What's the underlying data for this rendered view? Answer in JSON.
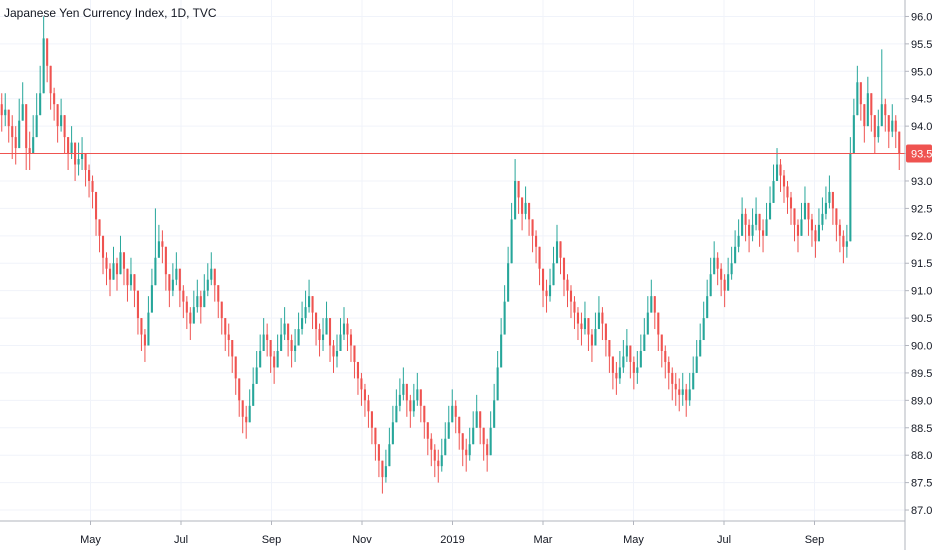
{
  "chart_data": {
    "type": "candlestick",
    "title": "Japanese Yen Currency Index, 1D, TVC",
    "x_tick_labels": [
      "May",
      "Jul",
      "Sep",
      "Nov",
      "2019",
      "Mar",
      "May",
      "Jul",
      "Sep"
    ],
    "y_tick_labels": [
      "87.0",
      "87.5",
      "88.0",
      "88.5",
      "89.0",
      "89.5",
      "90.0",
      "90.5",
      "91.0",
      "91.5",
      "92.0",
      "92.5",
      "93.0",
      "93.5",
      "94.0",
      "94.5",
      "95.0",
      "95.5",
      "96.0"
    ],
    "ylim": [
      86.8,
      96.3
    ],
    "last_price": 93.5,
    "last_price_label": "93.5",
    "grid": true,
    "colors": {
      "up": "#26a69a",
      "down": "#ef5350",
      "grid": "#f0f3fa",
      "axis": "#b2b5be",
      "price_line": "#ef5350"
    },
    "closes": [
      94.2,
      94.3,
      94.0,
      93.8,
      93.6,
      94.1,
      94.4,
      93.6,
      93.5,
      93.8,
      94.2,
      94.6,
      95.6,
      95.1,
      94.6,
      94.4,
      94.0,
      94.2,
      93.8,
      93.5,
      93.7,
      93.3,
      93.4,
      93.5,
      93.2,
      93.0,
      92.8,
      92.3,
      92.0,
      91.6,
      91.4,
      91.2,
      91.5,
      91.3,
      91.7,
      91.4,
      91.1,
      91.3,
      91.0,
      90.5,
      90.2,
      90.0,
      90.6,
      91.1,
      91.6,
      91.9,
      91.8,
      91.3,
      91.0,
      91.2,
      91.4,
      91.0,
      90.8,
      90.6,
      90.4,
      90.7,
      90.9,
      90.7,
      91.0,
      91.2,
      91.4,
      91.1,
      90.8,
      90.5,
      90.2,
      90.1,
      89.8,
      89.4,
      89.0,
      88.7,
      88.6,
      88.9,
      89.3,
      89.6,
      89.9,
      90.2,
      90.1,
      89.8,
      89.6,
      89.9,
      90.2,
      90.4,
      90.1,
      89.9,
      90.0,
      90.3,
      90.5,
      90.7,
      90.9,
      90.6,
      90.3,
      90.1,
      90.2,
      90.5,
      90.0,
      89.8,
      89.9,
      90.2,
      90.4,
      90.2,
      90.0,
      89.7,
      89.4,
      89.2,
      89.0,
      88.8,
      88.5,
      88.2,
      87.9,
      87.6,
      87.8,
      88.2,
      88.6,
      88.9,
      89.1,
      89.3,
      89.0,
      88.8,
      89.0,
      89.2,
      88.9,
      88.6,
      88.3,
      88.1,
      87.9,
      87.8,
      88.0,
      88.3,
      88.6,
      88.9,
      88.7,
      88.4,
      88.1,
      88.0,
      88.2,
      88.5,
      88.8,
      88.5,
      88.2,
      88.0,
      88.5,
      89.0,
      89.6,
      90.2,
      90.8,
      91.5,
      92.3,
      93.0,
      92.7,
      92.4,
      92.6,
      92.3,
      92.0,
      91.8,
      91.4,
      91.0,
      90.9,
      91.1,
      91.5,
      91.9,
      91.6,
      91.2,
      91.0,
      90.8,
      90.6,
      90.4,
      90.3,
      90.5,
      90.2,
      90.0,
      90.3,
      90.6,
      90.4,
      90.1,
      89.8,
      89.5,
      89.4,
      89.6,
      89.8,
      90.0,
      89.7,
      89.5,
      89.6,
      89.9,
      90.2,
      90.6,
      90.9,
      90.6,
      90.2,
      89.9,
      89.7,
      89.5,
      89.3,
      89.2,
      89.1,
      89.2,
      89.0,
      89.2,
      89.5,
      89.8,
      90.1,
      90.5,
      90.9,
      91.3,
      91.6,
      91.4,
      91.2,
      91.0,
      91.3,
      91.5,
      91.8,
      92.0,
      92.4,
      92.2,
      92.0,
      92.2,
      92.4,
      92.1,
      92.0,
      92.3,
      92.6,
      93.0,
      93.3,
      93.1,
      92.9,
      92.7,
      92.5,
      92.2,
      92.0,
      92.3,
      92.6,
      92.3,
      92.1,
      91.9,
      92.2,
      92.4,
      92.6,
      92.8,
      92.5,
      92.2,
      92.0,
      91.8,
      91.9,
      93.5,
      94.2,
      94.8,
      94.4,
      94.0,
      94.6,
      94.2,
      93.8,
      94.0,
      94.4,
      94.2,
      93.9,
      94.1,
      93.9,
      93.5
    ],
    "highs": [
      94.6,
      94.6,
      94.3,
      94.2,
      94.0,
      94.5,
      94.8,
      93.9,
      93.9,
      94.2,
      94.6,
      95.1,
      96.0,
      95.6,
      95.0,
      94.7,
      94.3,
      94.5,
      94.1,
      93.8,
      94.0,
      93.6,
      93.7,
      93.8,
      93.5,
      93.3,
      93.1,
      92.6,
      92.3,
      91.9,
      91.7,
      91.5,
      91.8,
      91.6,
      92.0,
      91.7,
      91.4,
      91.6,
      91.3,
      90.8,
      90.5,
      90.3,
      90.9,
      91.4,
      92.5,
      92.2,
      92.1,
      91.6,
      91.3,
      91.5,
      91.7,
      91.3,
      91.1,
      90.9,
      90.7,
      91.0,
      91.2,
      91.0,
      91.3,
      91.5,
      91.7,
      91.4,
      91.1,
      90.8,
      90.5,
      90.4,
      90.1,
      89.7,
      89.3,
      89.0,
      88.9,
      89.2,
      89.6,
      89.9,
      90.2,
      90.5,
      90.4,
      90.1,
      89.9,
      90.2,
      90.5,
      90.7,
      90.4,
      90.2,
      90.3,
      90.6,
      90.8,
      91.0,
      91.2,
      90.9,
      90.6,
      90.4,
      90.5,
      90.8,
      90.3,
      90.1,
      90.2,
      90.5,
      90.7,
      90.5,
      90.3,
      90.0,
      89.7,
      89.5,
      89.3,
      89.1,
      88.8,
      88.5,
      88.2,
      87.9,
      88.1,
      88.5,
      88.9,
      89.2,
      89.4,
      89.6,
      89.3,
      89.1,
      89.3,
      89.5,
      89.2,
      88.9,
      88.6,
      88.4,
      88.2,
      88.1,
      88.3,
      88.6,
      88.9,
      89.2,
      89.0,
      88.7,
      88.4,
      88.3,
      88.5,
      88.8,
      89.1,
      88.8,
      88.5,
      88.3,
      88.8,
      89.3,
      89.9,
      90.5,
      91.1,
      91.8,
      92.6,
      93.4,
      93.0,
      92.7,
      92.9,
      92.6,
      92.3,
      92.1,
      91.7,
      91.3,
      91.2,
      91.4,
      91.8,
      92.2,
      91.9,
      91.5,
      91.3,
      91.1,
      90.9,
      90.7,
      90.6,
      90.8,
      90.5,
      90.3,
      90.6,
      90.9,
      90.7,
      90.4,
      90.1,
      89.8,
      89.7,
      89.9,
      90.1,
      90.3,
      90.0,
      89.8,
      89.9,
      90.2,
      90.5,
      90.9,
      91.2,
      90.9,
      90.5,
      90.2,
      90.0,
      89.8,
      89.6,
      89.5,
      89.4,
      89.5,
      89.3,
      89.5,
      89.8,
      90.1,
      90.4,
      90.8,
      91.2,
      91.6,
      91.9,
      91.7,
      91.5,
      91.3,
      91.6,
      91.8,
      92.1,
      92.3,
      92.7,
      92.5,
      92.3,
      92.5,
      92.7,
      92.4,
      92.3,
      92.6,
      92.9,
      93.3,
      93.6,
      93.4,
      93.2,
      93.0,
      92.8,
      92.5,
      92.3,
      92.6,
      92.9,
      92.6,
      92.4,
      92.2,
      92.5,
      92.7,
      92.9,
      93.1,
      92.8,
      92.5,
      92.3,
      92.1,
      92.2,
      93.8,
      94.5,
      95.1,
      94.7,
      94.3,
      94.9,
      94.5,
      94.1,
      94.3,
      95.4,
      94.5,
      94.2,
      94.4,
      94.2,
      93.7
    ],
    "lows": [
      93.9,
      94.0,
      93.7,
      93.4,
      93.3,
      93.8,
      94.1,
      93.2,
      93.2,
      93.5,
      93.9,
      94.3,
      95.2,
      94.8,
      94.3,
      94.1,
      93.7,
      93.9,
      93.5,
      93.2,
      93.4,
      93.0,
      93.1,
      93.2,
      92.9,
      92.7,
      92.5,
      92.0,
      91.7,
      91.3,
      91.1,
      90.9,
      91.2,
      91.0,
      91.4,
      91.1,
      90.8,
      91.0,
      90.7,
      90.2,
      89.9,
      89.7,
      90.3,
      90.8,
      91.3,
      91.6,
      91.5,
      91.0,
      90.7,
      90.9,
      91.1,
      90.7,
      90.5,
      90.3,
      90.1,
      90.4,
      90.6,
      90.4,
      90.7,
      90.9,
      91.1,
      90.8,
      90.5,
      90.2,
      89.9,
      89.8,
      89.5,
      89.1,
      88.7,
      88.4,
      88.3,
      88.6,
      89.0,
      89.3,
      89.6,
      89.9,
      89.8,
      89.5,
      89.3,
      89.6,
      89.9,
      90.1,
      89.8,
      89.6,
      89.7,
      90.0,
      90.2,
      90.4,
      90.6,
      90.3,
      90.0,
      89.8,
      89.9,
      90.2,
      89.7,
      89.5,
      89.6,
      89.9,
      90.1,
      89.9,
      89.7,
      89.4,
      89.1,
      88.9,
      88.7,
      88.5,
      88.2,
      87.9,
      87.6,
      87.3,
      87.5,
      87.9,
      88.3,
      88.6,
      88.8,
      89.0,
      88.7,
      88.5,
      88.7,
      88.9,
      88.6,
      88.3,
      88.0,
      87.8,
      87.6,
      87.5,
      87.7,
      88.0,
      88.3,
      88.6,
      88.4,
      88.1,
      87.8,
      87.7,
      87.9,
      88.2,
      88.5,
      88.2,
      87.9,
      87.7,
      88.2,
      88.7,
      89.3,
      89.9,
      90.5,
      91.2,
      92.0,
      92.7,
      92.4,
      92.1,
      92.3,
      92.0,
      91.7,
      91.5,
      91.1,
      90.7,
      90.6,
      90.8,
      91.2,
      91.6,
      91.3,
      90.9,
      90.7,
      90.5,
      90.3,
      90.1,
      90.0,
      90.2,
      89.9,
      89.7,
      90.0,
      90.3,
      90.1,
      89.8,
      89.5,
      89.2,
      89.1,
      89.3,
      89.5,
      89.7,
      89.4,
      89.2,
      89.3,
      89.6,
      89.9,
      90.3,
      90.6,
      90.3,
      89.9,
      89.6,
      89.4,
      89.2,
      89.0,
      88.9,
      88.8,
      88.9,
      88.7,
      88.9,
      89.2,
      89.5,
      89.8,
      90.2,
      90.6,
      91.0,
      91.3,
      91.1,
      90.9,
      90.7,
      91.0,
      91.2,
      91.5,
      91.7,
      92.1,
      91.9,
      91.7,
      91.9,
      92.1,
      91.8,
      91.7,
      92.0,
      92.3,
      92.7,
      93.0,
      92.8,
      92.6,
      92.4,
      92.2,
      91.9,
      91.7,
      92.0,
      92.3,
      92.0,
      91.8,
      91.6,
      91.9,
      92.1,
      92.3,
      92.5,
      92.2,
      91.9,
      91.7,
      91.5,
      91.6,
      93.2,
      93.9,
      94.5,
      94.1,
      93.7,
      94.3,
      93.9,
      93.5,
      93.7,
      94.1,
      93.9,
      93.6,
      93.8,
      93.6,
      93.2
    ]
  }
}
